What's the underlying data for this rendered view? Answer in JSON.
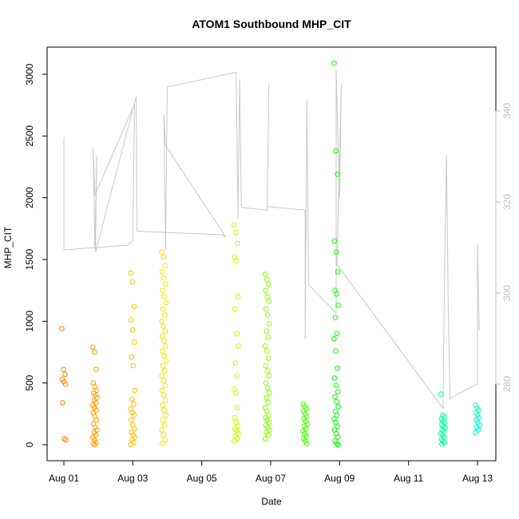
{
  "chart_data": {
    "type": "scatter",
    "title": "ATOM1 Southbound MHP_CIT",
    "xlabel": "Date",
    "ylabel": "MHP_CIT",
    "x_ticks": [
      "Aug 01",
      "Aug 03",
      "Aug 05",
      "Aug 07",
      "Aug 09",
      "Aug 11",
      "Aug 13"
    ],
    "y_ticks": [
      0,
      500,
      1000,
      1500,
      2000,
      2500,
      3000
    ],
    "y2_ticks": [
      280,
      300,
      320,
      340
    ],
    "xlim_days": [
      0.7,
      13.5
    ],
    "ylim": [
      -120,
      3200
    ],
    "y2lim": [
      262,
      352
    ],
    "grid": false,
    "point_color_gradient": [
      "#ff8000",
      "#ffff00",
      "#00ff00",
      "#00ffcc"
    ],
    "line_color": "#c8c8c8",
    "series": [
      {
        "kind": "points",
        "clusters": [
          {
            "x": 1.0,
            "values": [
              940,
              610,
              570,
              530,
              510,
              490,
              340,
              50,
              40
            ]
          },
          {
            "x": 1.9,
            "values": [
              790,
              750,
              610,
              500,
              470,
              440,
              420,
              400,
              380,
              360,
              340,
              320,
              300,
              280,
              260,
              230,
              200,
              170,
              140,
              120,
              100,
              80,
              60,
              40,
              20,
              10,
              0
            ]
          },
          {
            "x": 3.0,
            "values": [
              1390,
              1320,
              1120,
              1010,
              930,
              830,
              710,
              640,
              440,
              370,
              330,
              290,
              260,
              240,
              200,
              160,
              130,
              100,
              80,
              60,
              40,
              20,
              0
            ]
          },
          {
            "x": 3.9,
            "values": [
              1560,
              1520,
              1450,
              1400,
              1350,
              1300,
              1250,
              1200,
              1150,
              1100,
              1050,
              1000,
              960,
              920,
              880,
              840,
              800,
              760,
              720,
              680,
              640,
              600,
              560,
              520,
              480,
              440,
              400,
              360,
              320,
              280,
              240,
              200,
              160,
              120,
              80,
              40,
              10
            ]
          },
          {
            "x": 6.0,
            "values": [
              1780,
              1720,
              1630,
              1520,
              1490,
              1200,
              1100,
              900,
              800,
              660,
              560,
              450,
              420,
              300,
              220,
              180,
              150,
              130,
              110,
              90,
              70,
              50,
              30
            ]
          },
          {
            "x": 6.9,
            "values": [
              1380,
              1340,
              1300,
              1250,
              1200,
              1160,
              1100,
              1050,
              980,
              920,
              870,
              800,
              760,
              700,
              640,
              600,
              560,
              500,
              460,
              420,
              380,
              340,
              300,
              270,
              240,
              220,
              200,
              180,
              160,
              140,
              120,
              100,
              80,
              50
            ]
          },
          {
            "x": 8.0,
            "values": [
              330,
              310,
              290,
              270,
              250,
              230,
              210,
              190,
              170,
              150,
              130,
              110,
              90,
              70,
              50,
              30,
              10
            ]
          },
          {
            "x": 8.9,
            "values": [
              3090,
              2380,
              2190,
              1650,
              1560,
              1400,
              1250,
              1220,
              1130,
              1030,
              900,
              860,
              760,
              620,
              540,
              480,
              430,
              390,
              350,
              310,
              270,
              240,
              210,
              180,
              150,
              120,
              90,
              60,
              30,
              10,
              0
            ]
          },
          {
            "x": 12.0,
            "values": [
              410,
              240,
              225,
              210,
              195,
              180,
              165,
              150,
              135,
              120,
              105,
              90,
              75,
              60,
              45,
              30,
              15,
              5
            ]
          },
          {
            "x": 13.0,
            "values": [
              320,
              300,
              280,
              260,
              240,
              220,
              200,
              180,
              160,
              140,
              120,
              100
            ]
          }
        ]
      },
      {
        "kind": "line",
        "axis": "right",
        "points": [
          [
            1.0,
            334.2
          ],
          [
            1.0,
            309.5
          ],
          [
            2.85,
            310.5
          ],
          [
            3.0,
            311.5
          ],
          [
            3.05,
            341.5
          ],
          [
            1.9,
            321.5
          ],
          [
            1.85,
            331.8
          ],
          [
            1.9,
            309.7
          ],
          [
            1.95,
            330.2
          ],
          [
            1.92,
            309.0
          ],
          [
            3.1,
            343.2
          ],
          [
            3.12,
            313.6
          ],
          [
            5.6,
            312.8
          ],
          [
            5.7,
            312.3
          ],
          [
            3.95,
            332.4
          ],
          [
            3.9,
            339.3
          ],
          [
            3.95,
            309.4
          ],
          [
            4.0,
            345.3
          ],
          [
            6.0,
            348.5
          ],
          [
            6.05,
            316.3
          ],
          [
            6.1,
            347.0
          ],
          [
            6.15,
            318.8
          ],
          [
            6.9,
            318.2
          ],
          [
            6.95,
            346.0
          ],
          [
            6.9,
            319.0
          ],
          [
            8.0,
            318.2
          ],
          [
            8.0,
            290.0
          ],
          [
            8.05,
            342.3
          ],
          [
            8.1,
            301.8
          ],
          [
            8.9,
            295.6
          ],
          [
            8.9,
            349.0
          ],
          [
            9.0,
            320.7
          ],
          [
            9.05,
            346.0
          ],
          [
            8.92,
            306.3
          ],
          [
            12.0,
            274.7
          ],
          [
            12.05,
            307.2
          ],
          [
            12.1,
            330.3
          ],
          [
            12.15,
            298.4
          ],
          [
            12.2,
            276.8
          ],
          [
            13.0,
            280.1
          ],
          [
            13.0,
            310.7
          ],
          [
            13.05,
            291.8
          ]
        ]
      }
    ]
  }
}
